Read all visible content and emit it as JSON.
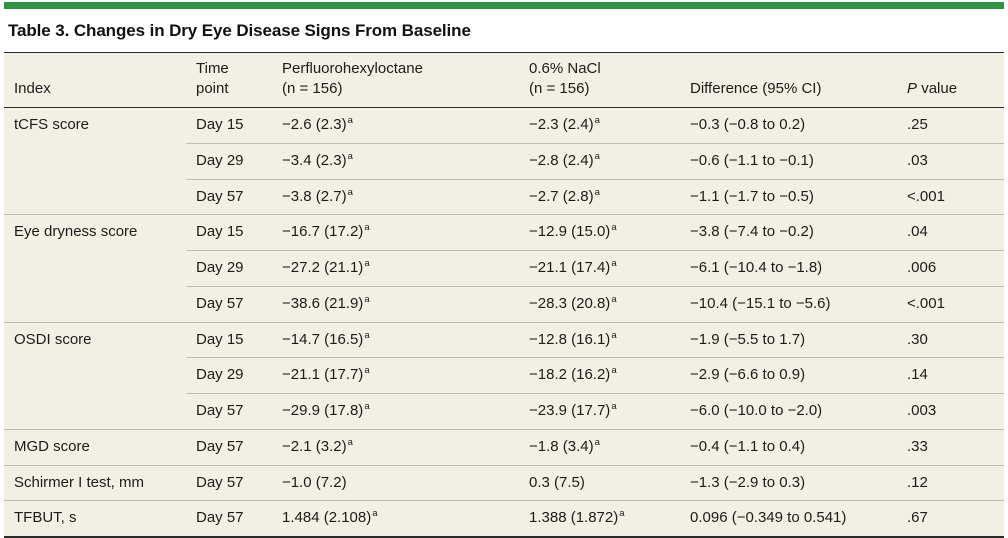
{
  "accent_color": "#2f9343",
  "panel_color": "#f2efe4",
  "table": {
    "title": "Table 3. Changes in Dry Eye Disease Signs From Baseline",
    "columns": [
      "Index",
      "Time\npoint",
      "Perfluorohexyloctane\n(n = 156)",
      "0.6% NaCl\n(n = 156)",
      "Difference (95% CI)"
    ],
    "p_column": {
      "italic": "P",
      "rest": "value"
    },
    "footnote_marker": "a",
    "groups": [
      {
        "index": "tCFS score",
        "rows": [
          {
            "time": "Day 15",
            "pfho": "−2.6 (2.3)",
            "pfho_sup": "a",
            "nacl": "−2.3 (2.4)",
            "nacl_sup": "a",
            "diff": "−0.3 (−0.8 to 0.2)",
            "p": ".25"
          },
          {
            "time": "Day 29",
            "pfho": "−3.4 (2.3)",
            "pfho_sup": "a",
            "nacl": "−2.8 (2.4)",
            "nacl_sup": "a",
            "diff": "−0.6 (−1.1 to −0.1)",
            "p": ".03"
          },
          {
            "time": "Day 57",
            "pfho": "−3.8 (2.7)",
            "pfho_sup": "a",
            "nacl": "−2.7 (2.8)",
            "nacl_sup": "a",
            "diff": "−1.1 (−1.7 to −0.5)",
            "p": "<.001"
          }
        ]
      },
      {
        "index": "Eye dryness score",
        "rows": [
          {
            "time": "Day 15",
            "pfho": "−16.7 (17.2)",
            "pfho_sup": "a",
            "nacl": "−12.9 (15.0)",
            "nacl_sup": "a",
            "diff": "−3.8 (−7.4 to −0.2)",
            "p": ".04"
          },
          {
            "time": "Day 29",
            "pfho": "−27.2 (21.1)",
            "pfho_sup": "a",
            "nacl": "−21.1 (17.4)",
            "nacl_sup": "a",
            "diff": "−6.1 (−10.4 to −1.8)",
            "p": ".006"
          },
          {
            "time": "Day 57",
            "pfho": "−38.6 (21.9)",
            "pfho_sup": "a",
            "nacl": "−28.3 (20.8)",
            "nacl_sup": "a",
            "diff": "−10.4 (−15.1 to −5.6)",
            "p": "<.001"
          }
        ]
      },
      {
        "index": "OSDI score",
        "rows": [
          {
            "time": "Day 15",
            "pfho": "−14.7 (16.5)",
            "pfho_sup": "a",
            "nacl": "−12.8 (16.1)",
            "nacl_sup": "a",
            "diff": "−1.9 (−5.5 to 1.7)",
            "p": ".30"
          },
          {
            "time": "Day 29",
            "pfho": "−21.1 (17.7)",
            "pfho_sup": "a",
            "nacl": "−18.2 (16.2)",
            "nacl_sup": "a",
            "diff": "−2.9 (−6.6 to 0.9)",
            "p": ".14"
          },
          {
            "time": "Day 57",
            "pfho": "−29.9 (17.8)",
            "pfho_sup": "a",
            "nacl": "−23.9 (17.7)",
            "nacl_sup": "a",
            "diff": "−6.0 (−10.0 to −2.0)",
            "p": ".003"
          }
        ]
      },
      {
        "index": "MGD score",
        "rows": [
          {
            "time": "Day 57",
            "pfho": "−2.1 (3.2)",
            "pfho_sup": "a",
            "nacl": "−1.8 (3.4)",
            "nacl_sup": "a",
            "diff": "−0.4 (−1.1 to 0.4)",
            "p": ".33"
          }
        ]
      },
      {
        "index": "Schirmer I test, mm",
        "rows": [
          {
            "time": "Day 57",
            "pfho": "−1.0 (7.2)",
            "pfho_sup": "",
            "nacl": "0.3 (7.5)",
            "nacl_sup": "",
            "diff": "−1.3 (−2.9 to 0.3)",
            "p": ".12"
          }
        ]
      },
      {
        "index": "TFBUT, s",
        "rows": [
          {
            "time": "Day 57",
            "pfho": "1.484 (2.108)",
            "pfho_sup": "a",
            "nacl": "1.388 (1.872)",
            "nacl_sup": "a",
            "diff": "0.096 (−0.349 to 0.541)",
            "p": ".67"
          }
        ]
      }
    ]
  }
}
